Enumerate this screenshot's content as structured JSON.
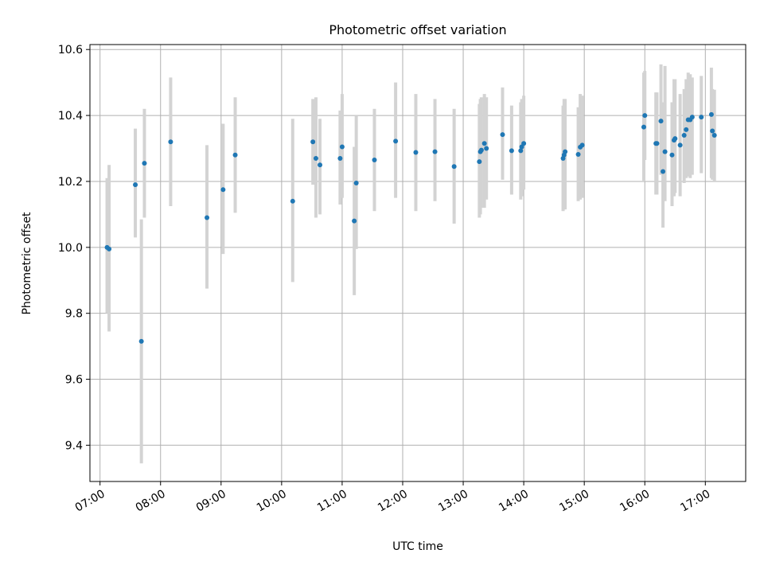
{
  "chart_data": {
    "type": "scatter",
    "title": "Photometric offset variation",
    "xlabel": "UTC time",
    "ylabel": "Photometric offset",
    "xlim": [
      "06:50",
      "17:40"
    ],
    "ylim": [
      9.29,
      10.615
    ],
    "x_ticks": [
      "07:00",
      "08:00",
      "09:00",
      "10:00",
      "11:00",
      "12:00",
      "13:00",
      "14:00",
      "15:00",
      "16:00",
      "17:00"
    ],
    "y_ticks": [
      "9.4",
      "9.6",
      "9.8",
      "10.0",
      "10.2",
      "10.4",
      "10.6"
    ],
    "grid": true,
    "colors": {
      "point": "#1f77b4",
      "errorbar": "#d3d3d3",
      "grid": "#b0b0b0"
    },
    "series": [
      {
        "x": [
          "07:07",
          "07:09",
          "07:35",
          "07:41",
          "07:44",
          "08:10",
          "08:46",
          "09:02",
          "09:14",
          "10:11",
          "10:31",
          "10:34",
          "10:38",
          "10:58",
          "11:00",
          "11:12",
          "11:14",
          "11:32",
          "11:53",
          "12:13",
          "12:32",
          "12:51",
          "13:16",
          "13:17",
          "13:18",
          "13:21",
          "13:23",
          "13:39",
          "13:48",
          "13:57",
          "13:58",
          "14:00",
          "14:39",
          "14:40",
          "14:41",
          "14:54",
          "14:56",
          "14:58",
          "15:59",
          "16:00",
          "16:11",
          "16:12",
          "16:16",
          "16:18",
          "16:20",
          "16:27",
          "16:29",
          "16:30",
          "16:35",
          "16:39",
          "16:41",
          "16:43",
          "16:45",
          "16:47",
          "16:56",
          "17:06",
          "17:07",
          "17:09"
        ],
        "y": [
          10.0,
          9.995,
          10.19,
          9.715,
          10.255,
          10.32,
          10.09,
          10.175,
          10.28,
          10.14,
          10.32,
          10.27,
          10.25,
          10.27,
          10.305,
          10.08,
          10.195,
          10.265,
          10.322,
          10.288,
          10.29,
          10.245,
          10.26,
          10.29,
          10.295,
          10.315,
          10.3,
          10.342,
          10.293,
          10.293,
          10.305,
          10.315,
          10.27,
          10.28,
          10.29,
          10.282,
          10.304,
          10.31,
          10.365,
          10.4,
          10.315,
          10.315,
          10.383,
          10.23,
          10.29,
          10.28,
          10.325,
          10.33,
          10.31,
          10.34,
          10.357,
          10.387,
          10.387,
          10.395,
          10.395,
          10.403,
          10.353,
          10.34
        ],
        "err_low": [
          9.8,
          9.745,
          10.03,
          9.345,
          10.09,
          10.125,
          9.875,
          9.98,
          10.105,
          9.895,
          10.19,
          10.09,
          10.1,
          10.13,
          10.15,
          9.855,
          9.995,
          10.11,
          10.15,
          10.11,
          10.14,
          10.072,
          10.09,
          10.1,
          10.12,
          10.12,
          10.145,
          10.205,
          10.16,
          10.145,
          10.155,
          10.175,
          10.11,
          10.115,
          10.115,
          10.14,
          10.145,
          10.15,
          10.2,
          10.265,
          10.16,
          10.16,
          10.22,
          10.06,
          10.14,
          10.125,
          10.155,
          10.165,
          10.155,
          10.195,
          10.21,
          10.215,
          10.21,
          10.22,
          10.225,
          10.21,
          10.205,
          10.2
        ],
        "err_high": [
          10.21,
          10.25,
          10.36,
          10.085,
          10.42,
          10.515,
          10.31,
          10.375,
          10.455,
          10.39,
          10.45,
          10.455,
          10.39,
          10.415,
          10.465,
          10.305,
          10.4,
          10.42,
          10.5,
          10.465,
          10.45,
          10.42,
          10.435,
          10.45,
          10.455,
          10.465,
          10.455,
          10.485,
          10.43,
          10.44,
          10.45,
          10.46,
          10.43,
          10.45,
          10.45,
          10.425,
          10.465,
          10.46,
          10.53,
          10.535,
          10.47,
          10.47,
          10.555,
          10.44,
          10.55,
          10.44,
          10.51,
          10.51,
          10.465,
          10.48,
          10.51,
          10.53,
          10.525,
          10.515,
          10.52,
          10.545,
          10.48,
          10.478
        ]
      }
    ]
  }
}
